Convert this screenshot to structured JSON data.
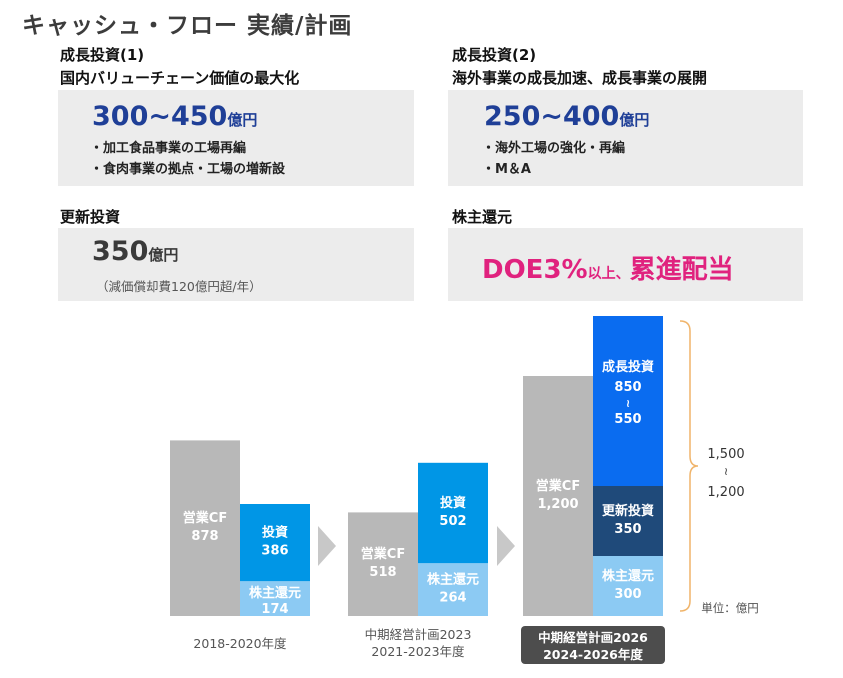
{
  "title": "キャッシュ・フロー 実績/計画",
  "growth1": {
    "heading": "成長投資(1)",
    "subheading": "国内バリューチェーン価値の最大化",
    "amount": "300~450",
    "unit": "億円",
    "bullets": [
      "・加工食品事業の工場再編",
      "・食肉事業の拠点・工場の増新設"
    ]
  },
  "growth2": {
    "heading": "成長投資(2)",
    "subheading": "海外事業の成長加速、成長事業の展開",
    "amount": "250~400",
    "unit": "億円",
    "bullets": [
      "・海外工場の強化・再編",
      "・M＆A"
    ]
  },
  "renewal": {
    "heading": "更新投資",
    "amount": "350",
    "unit": "億円",
    "note": "（減価償却費120億円超/年）"
  },
  "shareholder": {
    "heading": "株主還元",
    "doe": "DOE3%",
    "connector": "以上、",
    "policy": "累進配当"
  },
  "colors": {
    "gray_bar": "#b8b8b8",
    "blue_bar": "#0096e6",
    "light_blue_bar": "#8ccaf3",
    "bright_blue_bar": "#0a6cf0",
    "navy_bar": "#1f4a7a",
    "arrow": "#c8c8c8",
    "brace": "#f0b46a",
    "pink": "#e0227e"
  },
  "chart_data": {
    "type": "bar",
    "unit_label": "単位：億円",
    "groups": [
      {
        "period": [
          "2018-2020年度"
        ],
        "highlight": false,
        "operating_cf": {
          "label": "営業CF",
          "value": 878
        },
        "stack": [
          {
            "label": "株主還元",
            "value": 174,
            "display": "174",
            "color": "light_blue_bar"
          },
          {
            "label": "投資",
            "value": 386,
            "display": "386",
            "color": "blue_bar"
          }
        ]
      },
      {
        "period": [
          "中期経営計画2023",
          "2021-2023年度"
        ],
        "highlight": false,
        "operating_cf": {
          "label": "営業CF",
          "value": 518
        },
        "stack": [
          {
            "label": "株主還元",
            "value": 264,
            "display": "264",
            "color": "light_blue_bar"
          },
          {
            "label": "投資",
            "value": 502,
            "display": "502",
            "color": "blue_bar"
          }
        ]
      },
      {
        "period": [
          "中期経営計画2026",
          "2024-2026年度"
        ],
        "highlight": true,
        "operating_cf": {
          "label": "営業CF",
          "value": 1200,
          "display": "1,200"
        },
        "stack": [
          {
            "label": "株主還元",
            "value": 300,
            "display": "300",
            "color": "light_blue_bar"
          },
          {
            "label": "更新投資",
            "value": 350,
            "display": "350",
            "color": "navy_bar"
          },
          {
            "label": "成長投資",
            "value": 850,
            "display": "850",
            "display_lines": [
              "850",
              "≀",
              "550"
            ],
            "color": "bright_blue_bar"
          }
        ]
      }
    ],
    "range_annotation": [
      "1,500",
      "≀",
      "1,200"
    ]
  }
}
